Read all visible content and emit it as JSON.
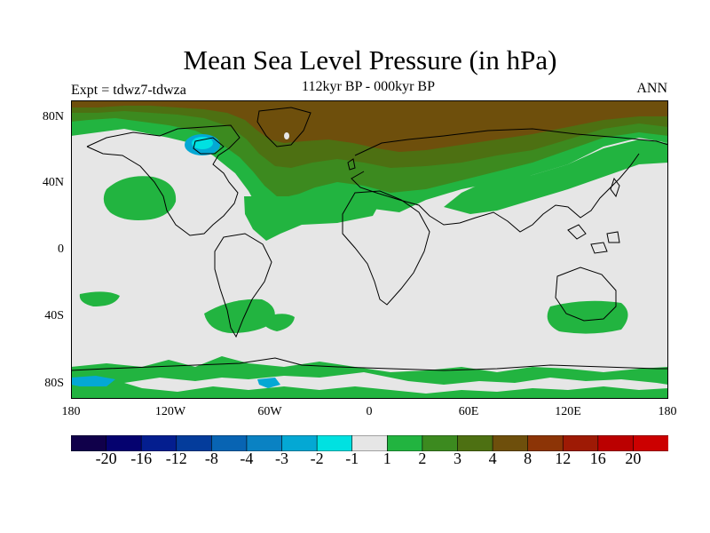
{
  "header": {
    "title": "Mean Sea Level Pressure (in hPa)",
    "subtitle": "112kyr BP - 000kyr BP",
    "experiment": "Expt = tdwz7-tdwza",
    "season": "ANN"
  },
  "axes": {
    "y_ticks": [
      "80N",
      "40N",
      "0",
      "40S",
      "80S"
    ],
    "x_ticks": [
      "180",
      "120W",
      "60W",
      "0",
      "60E",
      "120E",
      "180"
    ]
  },
  "colorbar": {
    "labels": [
      "-20",
      "-16",
      "-12",
      "-8",
      "-4",
      "-3",
      "-2",
      "-1",
      "1",
      "2",
      "3",
      "4",
      "8",
      "12",
      "16",
      "20"
    ],
    "colors": [
      "#10004a",
      "#05026f",
      "#041e8f",
      "#043c9b",
      "#0864b3",
      "#0a82c3",
      "#04a8d4",
      "#00e1e1",
      "#e6e6e6",
      "#22b440",
      "#3c8a1f",
      "#4d7012",
      "#6e4f0c",
      "#8c3406",
      "#9e1a05",
      "#bb0000",
      "#cc0000"
    ]
  },
  "map_colors": {
    "background": "#e6e6e6",
    "green_1_2": "#22b440",
    "green_2_3": "#3c8a1f",
    "olive_3_4": "#4d7012",
    "brown_4_8": "#6e4f0c",
    "cyan": "#00e1e1",
    "lightblue": "#04a8d4",
    "coast": "#000000"
  }
}
